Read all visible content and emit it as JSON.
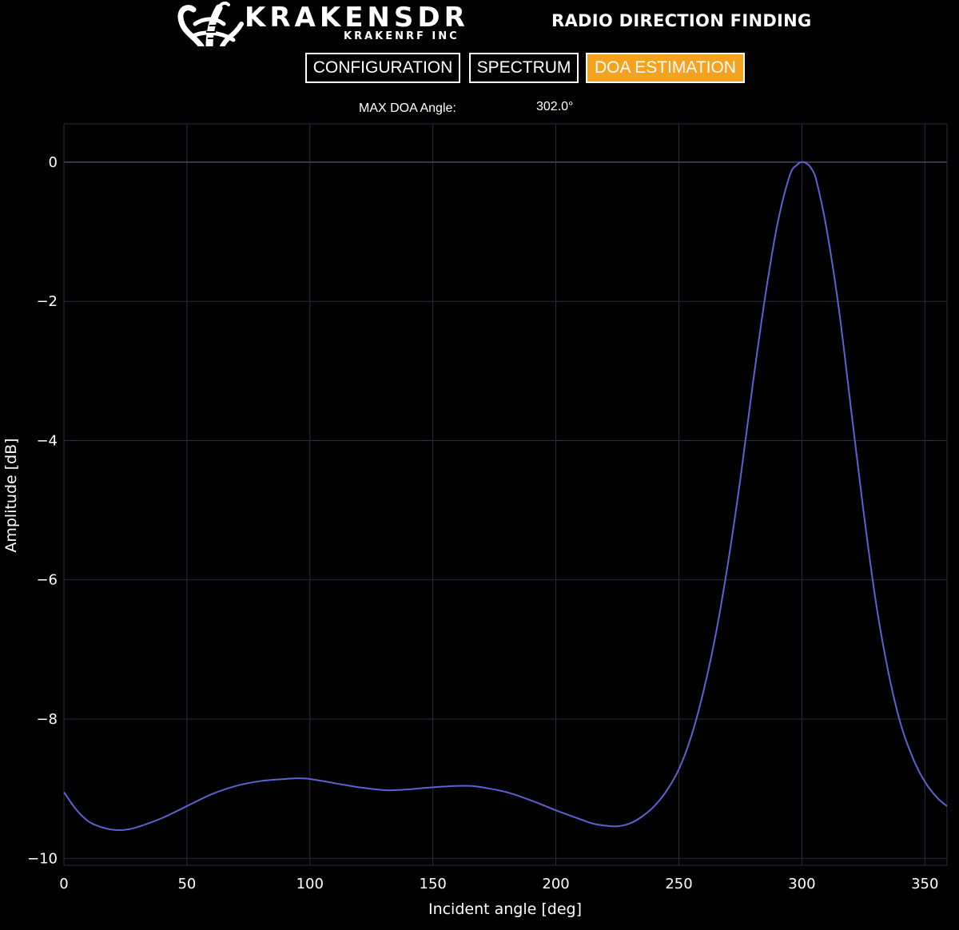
{
  "header": {
    "logo_text": "KRAKENSDR",
    "logo_subtext": "KRAKENRF INC",
    "logo_icon": "kraken-tentacle-icon",
    "app_title": "RADIO DIRECTION FINDING"
  },
  "nav": {
    "tabs": [
      {
        "label": "CONFIGURATION",
        "active": false
      },
      {
        "label": "SPECTRUM",
        "active": false
      },
      {
        "label": "DOA ESTIMATION",
        "active": true
      }
    ],
    "active_color": "#f6a21e"
  },
  "doa": {
    "label": "MAX DOA Angle:",
    "value": "302.0°"
  },
  "chart_data": {
    "type": "line",
    "xlabel": "Incident angle [deg]",
    "ylabel": "Amplitude [dB]",
    "xlim": [
      0,
      359
    ],
    "ylim": [
      -10.1,
      0.55
    ],
    "xticks": [
      0,
      50,
      100,
      150,
      200,
      250,
      300,
      350
    ],
    "yticks": [
      0,
      -2,
      -4,
      -6,
      -8,
      -10
    ],
    "ytick_labels": [
      "0",
      "−2",
      "−4",
      "−6",
      "−8",
      "−10"
    ],
    "grid": true,
    "line_color": "#5b63d4",
    "series": [
      {
        "x": [
          0,
          5,
          10,
          15,
          20,
          25,
          30,
          40,
          50,
          60,
          70,
          80,
          90,
          95,
          100,
          110,
          120,
          130,
          135,
          140,
          150,
          160,
          165,
          170,
          180,
          190,
          200,
          210,
          215,
          220,
          225,
          230,
          235,
          240,
          245,
          250,
          255,
          260,
          265,
          270,
          275,
          280,
          285,
          290,
          295,
          298,
          300,
          302,
          304,
          306,
          310,
          315,
          320,
          325,
          330,
          335,
          340,
          345,
          350,
          355,
          359
        ],
        "y": [
          -9.05,
          -9.3,
          -9.47,
          -9.55,
          -9.59,
          -9.59,
          -9.55,
          -9.42,
          -9.25,
          -9.08,
          -8.96,
          -8.89,
          -8.86,
          -8.85,
          -8.86,
          -8.92,
          -8.98,
          -9.02,
          -9.02,
          -9.01,
          -8.98,
          -8.96,
          -8.96,
          -8.98,
          -9.05,
          -9.17,
          -9.31,
          -9.44,
          -9.5,
          -9.53,
          -9.54,
          -9.5,
          -9.4,
          -9.25,
          -9.03,
          -8.72,
          -8.25,
          -7.6,
          -6.78,
          -5.75,
          -4.55,
          -3.2,
          -1.95,
          -0.9,
          -0.2,
          -0.04,
          0.0,
          -0.02,
          -0.1,
          -0.28,
          -0.95,
          -2.1,
          -3.55,
          -5.0,
          -6.3,
          -7.3,
          -8.05,
          -8.55,
          -8.9,
          -9.13,
          -9.25
        ]
      }
    ]
  }
}
